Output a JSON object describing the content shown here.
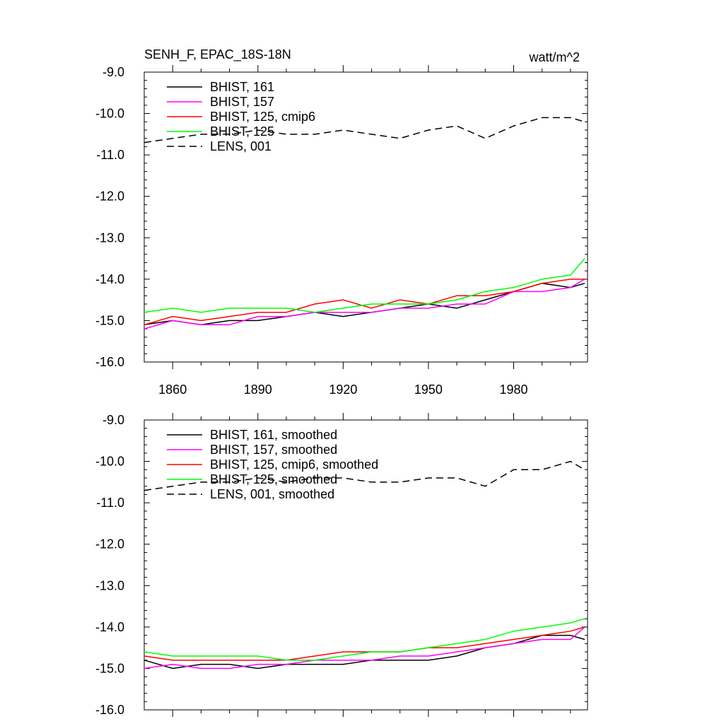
{
  "figure": {
    "title_left": "SENH_F, EPAC_18S-18N",
    "title_right": "watt/m^2"
  },
  "chart_data": [
    {
      "type": "line",
      "panel": "top",
      "ylim": [
        -16.0,
        -9.0
      ],
      "xlim": [
        1850,
        2006
      ],
      "yticks": [
        -9.0,
        -10.0,
        -11.0,
        -12.0,
        -13.0,
        -14.0,
        -15.0,
        -16.0
      ],
      "ytick_labels": [
        "-9.0",
        "-10.0",
        "-11.0",
        "-12.0",
        "-13.0",
        "-14.0",
        "-15.0",
        "-16.0"
      ],
      "xticks": [
        1860,
        1890,
        1920,
        1950,
        1980
      ],
      "xtick_labels": [
        "1860",
        "1890",
        "1920",
        "1950",
        "1980"
      ],
      "legend_position": "top-left",
      "series": [
        {
          "name": "BHIST, 161",
          "color": "#000000",
          "dash": "solid",
          "x": [
            1850,
            1860,
            1870,
            1880,
            1890,
            1900,
            1910,
            1920,
            1930,
            1940,
            1950,
            1960,
            1970,
            1980,
            1990,
            2000,
            2005
          ],
          "y": [
            -15.1,
            -15.0,
            -15.1,
            -15.0,
            -15.0,
            -14.9,
            -14.8,
            -14.9,
            -14.8,
            -14.7,
            -14.6,
            -14.7,
            -14.5,
            -14.3,
            -14.1,
            -14.2,
            -14.1
          ]
        },
        {
          "name": "BHIST, 157",
          "color": "#ff00ff",
          "dash": "solid",
          "x": [
            1850,
            1860,
            1870,
            1880,
            1890,
            1900,
            1910,
            1920,
            1930,
            1940,
            1950,
            1960,
            1970,
            1980,
            1990,
            2000,
            2005
          ],
          "y": [
            -15.2,
            -15.0,
            -15.1,
            -15.1,
            -14.9,
            -14.9,
            -14.8,
            -14.8,
            -14.8,
            -14.7,
            -14.7,
            -14.6,
            -14.6,
            -14.3,
            -14.3,
            -14.2,
            -14.0
          ]
        },
        {
          "name": "BHIST, 125, cmip6",
          "color": "#ff0000",
          "dash": "solid",
          "x": [
            1850,
            1860,
            1870,
            1880,
            1890,
            1900,
            1910,
            1920,
            1930,
            1940,
            1950,
            1960,
            1970,
            1980,
            1990,
            2000,
            2005
          ],
          "y": [
            -15.1,
            -14.9,
            -15.0,
            -14.9,
            -14.8,
            -14.8,
            -14.6,
            -14.5,
            -14.7,
            -14.5,
            -14.6,
            -14.4,
            -14.4,
            -14.3,
            -14.1,
            -14.0,
            -14.0
          ]
        },
        {
          "name": "BHIST, 125",
          "color": "#00ff00",
          "dash": "solid",
          "x": [
            1850,
            1860,
            1870,
            1880,
            1890,
            1900,
            1910,
            1920,
            1930,
            1940,
            1950,
            1960,
            1970,
            1980,
            1990,
            2000,
            2005
          ],
          "y": [
            -14.8,
            -14.7,
            -14.8,
            -14.7,
            -14.7,
            -14.7,
            -14.8,
            -14.7,
            -14.6,
            -14.6,
            -14.6,
            -14.5,
            -14.3,
            -14.2,
            -14.0,
            -13.9,
            -13.5
          ]
        },
        {
          "name": "LENS, 001",
          "color": "#000000",
          "dash": "dashed",
          "x": [
            1850,
            1860,
            1870,
            1880,
            1890,
            1900,
            1910,
            1920,
            1930,
            1940,
            1950,
            1960,
            1970,
            1980,
            1990,
            2000,
            2005
          ],
          "y": [
            -10.7,
            -10.6,
            -10.5,
            -10.5,
            -10.4,
            -10.5,
            -10.5,
            -10.4,
            -10.5,
            -10.6,
            -10.4,
            -10.3,
            -10.6,
            -10.3,
            -10.1,
            -10.1,
            -10.2
          ]
        }
      ]
    },
    {
      "type": "line",
      "panel": "bottom",
      "ylim": [
        -16.0,
        -9.0
      ],
      "xlim": [
        1850,
        2006
      ],
      "yticks": [
        -9.0,
        -10.0,
        -11.0,
        -12.0,
        -13.0,
        -14.0,
        -15.0,
        -16.0
      ],
      "ytick_labels": [
        "-9.0",
        "-10.0",
        "-11.0",
        "-12.0",
        "-13.0",
        "-14.0",
        "-15.0",
        "-16.0"
      ],
      "legend_position": "top-left",
      "series": [
        {
          "name": "BHIST, 161, smoothed",
          "color": "#000000",
          "dash": "solid",
          "x": [
            1850,
            1860,
            1870,
            1880,
            1890,
            1900,
            1910,
            1920,
            1930,
            1940,
            1950,
            1960,
            1970,
            1980,
            1990,
            2000,
            2005
          ],
          "y": [
            -14.8,
            -15.0,
            -14.9,
            -14.9,
            -15.0,
            -14.9,
            -14.9,
            -14.9,
            -14.8,
            -14.8,
            -14.8,
            -14.7,
            -14.5,
            -14.4,
            -14.2,
            -14.2,
            -14.3
          ]
        },
        {
          "name": "BHIST, 157, smoothed",
          "color": "#ff00ff",
          "dash": "solid",
          "x": [
            1850,
            1860,
            1870,
            1880,
            1890,
            1900,
            1910,
            1920,
            1930,
            1940,
            1950,
            1960,
            1970,
            1980,
            1990,
            2000,
            2005
          ],
          "y": [
            -15.0,
            -14.9,
            -15.0,
            -15.0,
            -14.9,
            -14.9,
            -14.8,
            -14.8,
            -14.8,
            -14.7,
            -14.7,
            -14.6,
            -14.5,
            -14.4,
            -14.3,
            -14.3,
            -14.0
          ]
        },
        {
          "name": "BHIST, 125, cmip6, smoothed",
          "color": "#ff0000",
          "dash": "solid",
          "x": [
            1850,
            1860,
            1870,
            1880,
            1890,
            1900,
            1910,
            1920,
            1930,
            1940,
            1950,
            1960,
            1970,
            1980,
            1990,
            2000,
            2005
          ],
          "y": [
            -14.7,
            -14.8,
            -14.8,
            -14.8,
            -14.8,
            -14.8,
            -14.7,
            -14.6,
            -14.6,
            -14.6,
            -14.5,
            -14.5,
            -14.4,
            -14.3,
            -14.2,
            -14.1,
            -14.0
          ]
        },
        {
          "name": "BHIST, 125, smoothed",
          "color": "#00ff00",
          "dash": "solid",
          "x": [
            1850,
            1860,
            1870,
            1880,
            1890,
            1900,
            1910,
            1920,
            1930,
            1940,
            1950,
            1960,
            1970,
            1980,
            1990,
            2000,
            2005
          ],
          "y": [
            -14.6,
            -14.7,
            -14.7,
            -14.7,
            -14.7,
            -14.8,
            -14.8,
            -14.7,
            -14.6,
            -14.6,
            -14.5,
            -14.4,
            -14.3,
            -14.1,
            -14.0,
            -13.9,
            -13.8
          ]
        },
        {
          "name": "LENS, 001, smoothed",
          "color": "#000000",
          "dash": "dashed",
          "x": [
            1850,
            1860,
            1870,
            1880,
            1890,
            1900,
            1910,
            1920,
            1930,
            1940,
            1950,
            1960,
            1970,
            1980,
            1990,
            2000,
            2005
          ],
          "y": [
            -10.7,
            -10.6,
            -10.5,
            -10.5,
            -10.4,
            -10.5,
            -10.4,
            -10.4,
            -10.5,
            -10.5,
            -10.4,
            -10.4,
            -10.6,
            -10.2,
            -10.2,
            -10.0,
            -10.2
          ]
        }
      ]
    }
  ]
}
